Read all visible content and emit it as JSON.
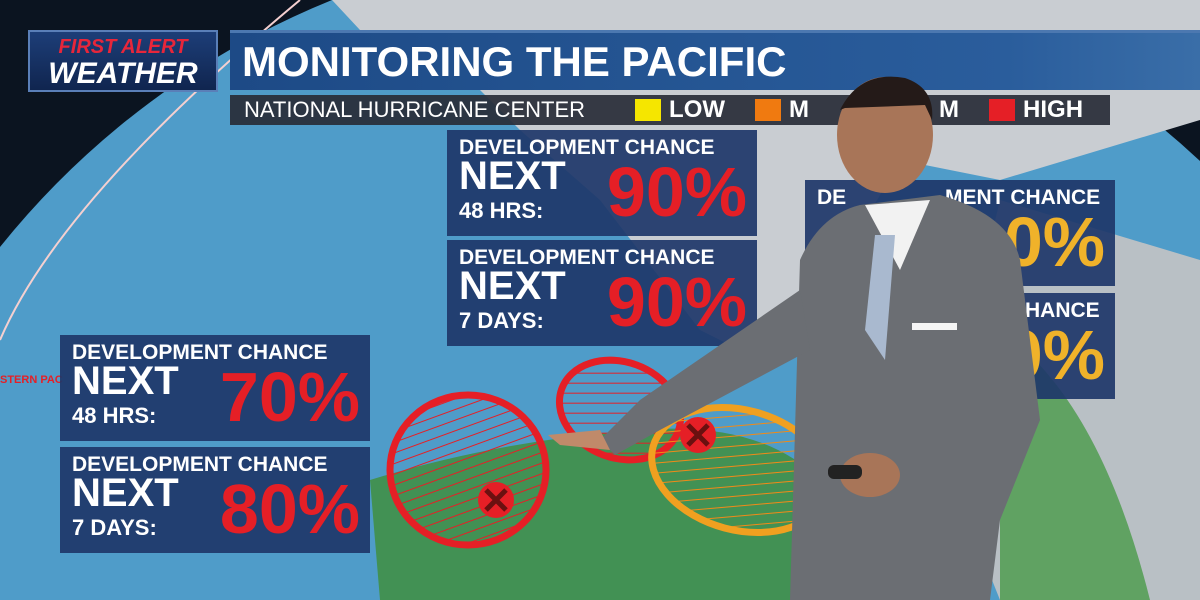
{
  "logo": {
    "line1": "FIRST ALERT",
    "line2": "WEATHER"
  },
  "title": "MONITORING THE PACIFIC",
  "subbar": {
    "source": "NATIONAL HURRICANE CENTER",
    "legend": [
      {
        "label": "LOW",
        "color": "#f5e600"
      },
      {
        "label": "M",
        "color": "#f07a10"
      },
      {
        "label": "M",
        "color": ""
      },
      {
        "label": "HIGH",
        "color": "#e51f26"
      }
    ]
  },
  "region_label": "STERN PAC",
  "boxes": [
    {
      "header": "DEVELOPMENT CHANCE",
      "next": "NEXT",
      "period": "48 HRS:",
      "pct": "90%"
    },
    {
      "header": "DEVELOPMENT CHANCE",
      "next": "NEXT",
      "period": "7 DAYS:",
      "pct": "90%"
    },
    {
      "header": "DEVELOPMENT CHANCE",
      "next": "NEXT",
      "period": "48 HRS:",
      "pct": "70%"
    },
    {
      "header": "DEVELOPMENT CHANCE",
      "next": "NEXT",
      "period": "7 DAYS:",
      "pct": "80%"
    },
    {
      "header": "DE",
      "header2": "MENT CHANCE",
      "pct": "0%"
    },
    {
      "header": "HANCE",
      "pct": "0%"
    }
  ]
}
